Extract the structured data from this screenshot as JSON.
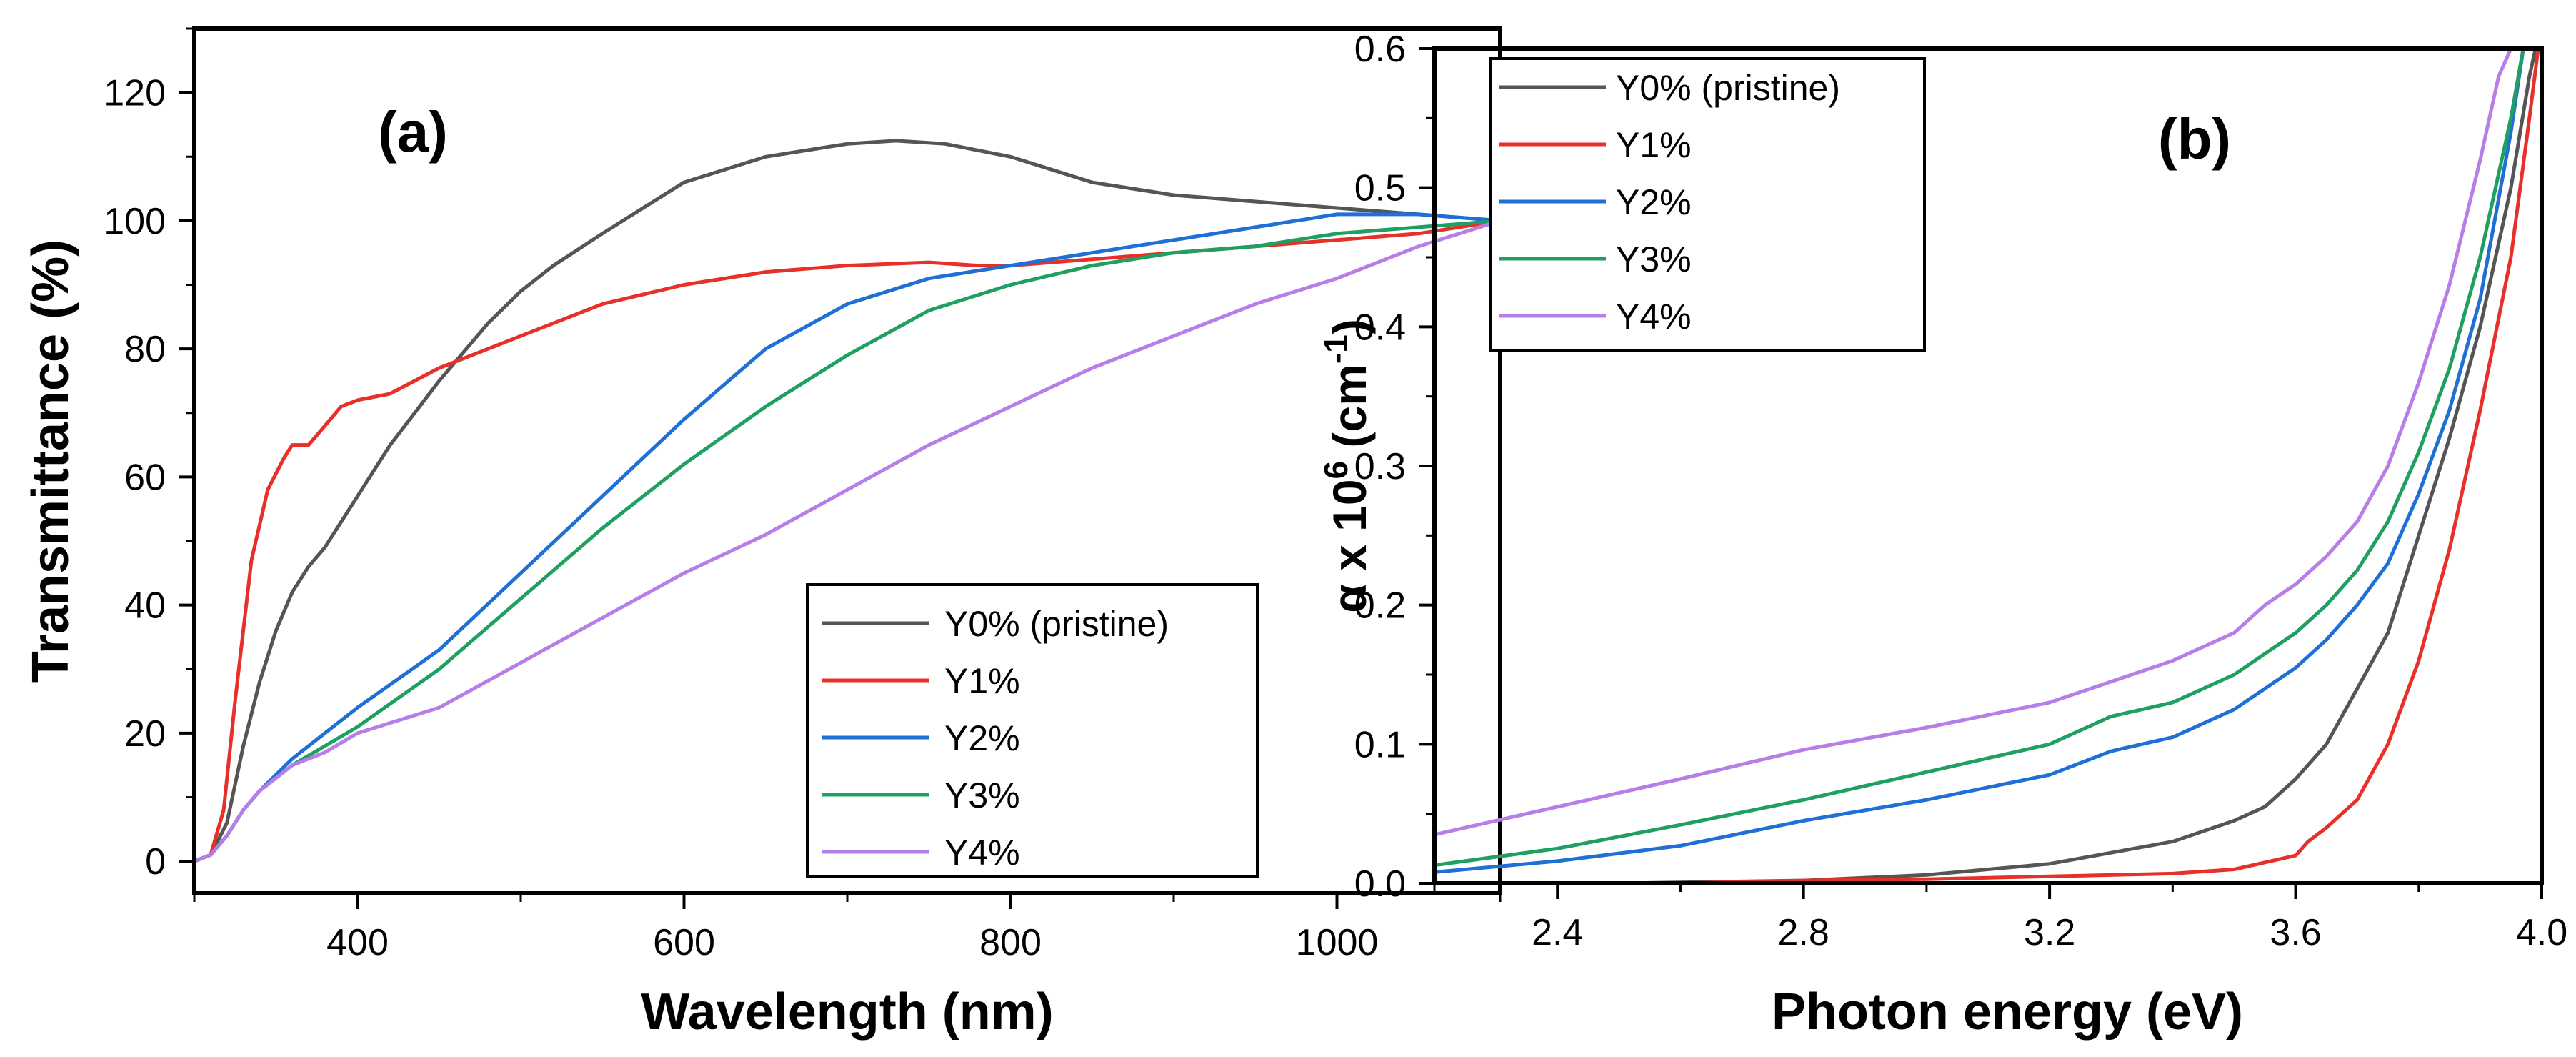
{
  "chart_data": [
    {
      "panel": "(a)",
      "type": "line",
      "xlabel": "Wavelength (nm)",
      "ylabel": "Transmittance (%)",
      "xlim": [
        300,
        1100
      ],
      "ylim": [
        -5,
        130
      ],
      "xticks": [
        400,
        600,
        800,
        1000
      ],
      "yticks": [
        0,
        20,
        40,
        60,
        80,
        100,
        120
      ],
      "legend_position": "bottom-right",
      "series": [
        {
          "name": "Y0% (pristine)",
          "color": "#555555",
          "x": [
            300,
            310,
            320,
            330,
            340,
            350,
            360,
            370,
            380,
            400,
            420,
            450,
            480,
            500,
            520,
            550,
            600,
            650,
            700,
            730,
            760,
            780,
            800,
            850,
            900,
            950,
            1000,
            1050,
            1100
          ],
          "y": [
            0,
            1,
            6,
            18,
            28,
            36,
            42,
            46,
            49,
            57,
            65,
            75,
            84,
            89,
            93,
            98,
            106,
            110,
            112,
            112.5,
            112,
            111,
            110,
            106,
            104,
            103,
            102,
            101,
            100
          ]
        },
        {
          "name": "Y1%",
          "color": "#e8302a",
          "x": [
            300,
            310,
            318,
            325,
            335,
            345,
            355,
            360,
            370,
            380,
            390,
            400,
            420,
            450,
            500,
            550,
            600,
            650,
            700,
            750,
            780,
            800,
            850,
            900,
            950,
            1000,
            1050,
            1100
          ],
          "y": [
            0,
            1,
            8,
            25,
            47,
            58,
            63,
            65,
            65,
            68,
            71,
            72,
            73,
            77,
            82,
            87,
            90,
            92,
            93,
            93.5,
            93,
            93,
            94,
            95,
            96,
            97,
            98,
            100
          ]
        },
        {
          "name": "Y2%",
          "color": "#1e6fd6",
          "x": [
            300,
            310,
            320,
            330,
            340,
            360,
            380,
            400,
            450,
            500,
            550,
            600,
            650,
            700,
            750,
            800,
            850,
            900,
            950,
            1000,
            1050,
            1100
          ],
          "y": [
            0,
            1,
            4,
            8,
            11,
            16,
            20,
            24,
            33,
            45,
            57,
            69,
            80,
            87,
            91,
            93,
            95,
            97,
            99,
            101,
            101,
            100
          ]
        },
        {
          "name": "Y3%",
          "color": "#1fa060",
          "x": [
            300,
            310,
            320,
            330,
            340,
            360,
            380,
            400,
            450,
            500,
            550,
            600,
            650,
            700,
            750,
            800,
            850,
            900,
            950,
            1000,
            1050,
            1100
          ],
          "y": [
            0,
            1,
            4,
            8,
            11,
            15,
            18,
            21,
            30,
            41,
            52,
            62,
            71,
            79,
            86,
            90,
            93,
            95,
            96,
            98,
            99,
            100
          ]
        },
        {
          "name": "Y4%",
          "color": "#b77ee8",
          "x": [
            300,
            310,
            320,
            330,
            340,
            360,
            380,
            400,
            450,
            500,
            550,
            600,
            650,
            700,
            750,
            800,
            850,
            900,
            950,
            1000,
            1050,
            1100
          ],
          "y": [
            0,
            1,
            4,
            8,
            11,
            15,
            17,
            20,
            24,
            31,
            38,
            45,
            51,
            58,
            65,
            71,
            77,
            82,
            87,
            91,
            96,
            100
          ]
        }
      ]
    },
    {
      "panel": "(b)",
      "type": "line",
      "xlabel": "Photon energy (eV)",
      "ylabel_prefix": "α x 10",
      "ylabel_exp": "6",
      "ylabel_unit": " (cm",
      "ylabel_unit_exp": "-1",
      "ylabel_close": ")",
      "xlim": [
        2.2,
        4.0
      ],
      "ylim": [
        0.0,
        0.6
      ],
      "xticks": [
        "2.4",
        "2.8",
        "3.2",
        "3.6",
        "4.0"
      ],
      "yticks": [
        "0.0",
        "0.1",
        "0.2",
        "0.3",
        "0.4",
        "0.5",
        "0.6"
      ],
      "legend_position": "top-left",
      "series": [
        {
          "name": "Y0% (pristine)",
          "color": "#555555",
          "x": [
            2.2,
            2.5,
            2.8,
            3.0,
            3.2,
            3.3,
            3.4,
            3.5,
            3.55,
            3.6,
            3.65,
            3.7,
            3.75,
            3.8,
            3.85,
            3.9,
            3.95,
            3.98,
            4.0
          ],
          "y": [
            0,
            0,
            0.002,
            0.006,
            0.014,
            0.022,
            0.03,
            0.045,
            0.055,
            0.075,
            0.1,
            0.14,
            0.18,
            0.25,
            0.32,
            0.4,
            0.5,
            0.58,
            0.62
          ]
        },
        {
          "name": "Y1%",
          "color": "#e8302a",
          "x": [
            2.2,
            2.6,
            2.8,
            3.0,
            3.2,
            3.4,
            3.5,
            3.55,
            3.6,
            3.62,
            3.65,
            3.7,
            3.75,
            3.8,
            3.85,
            3.9,
            3.95,
            3.98,
            4.0
          ],
          "y": [
            0,
            0,
            0.002,
            0.003,
            0.005,
            0.007,
            0.01,
            0.015,
            0.02,
            0.03,
            0.04,
            0.06,
            0.1,
            0.16,
            0.24,
            0.34,
            0.45,
            0.55,
            0.62
          ]
        },
        {
          "name": "Y2%",
          "color": "#1e6fd6",
          "x": [
            2.2,
            2.4,
            2.6,
            2.8,
            3.0,
            3.2,
            3.3,
            3.4,
            3.5,
            3.55,
            3.6,
            3.65,
            3.7,
            3.75,
            3.8,
            3.85,
            3.9,
            3.95,
            3.97
          ],
          "y": [
            0.008,
            0.016,
            0.027,
            0.045,
            0.06,
            0.078,
            0.095,
            0.105,
            0.125,
            0.14,
            0.155,
            0.175,
            0.2,
            0.23,
            0.28,
            0.34,
            0.42,
            0.54,
            0.6
          ]
        },
        {
          "name": "Y3%",
          "color": "#1fa060",
          "x": [
            2.2,
            2.4,
            2.6,
            2.8,
            3.0,
            3.2,
            3.3,
            3.4,
            3.5,
            3.55,
            3.6,
            3.65,
            3.7,
            3.75,
            3.8,
            3.85,
            3.9,
            3.95,
            3.97
          ],
          "y": [
            0.013,
            0.025,
            0.042,
            0.06,
            0.08,
            0.1,
            0.12,
            0.13,
            0.15,
            0.165,
            0.18,
            0.2,
            0.225,
            0.26,
            0.31,
            0.37,
            0.45,
            0.55,
            0.6
          ]
        },
        {
          "name": "Y4%",
          "color": "#b77ee8",
          "x": [
            2.2,
            2.4,
            2.6,
            2.8,
            3.0,
            3.2,
            3.3,
            3.4,
            3.5,
            3.55,
            3.6,
            3.65,
            3.7,
            3.75,
            3.8,
            3.85,
            3.9,
            3.93,
            3.95
          ],
          "y": [
            0.035,
            0.055,
            0.075,
            0.096,
            0.112,
            0.13,
            0.145,
            0.16,
            0.18,
            0.2,
            0.215,
            0.235,
            0.26,
            0.3,
            0.36,
            0.43,
            0.52,
            0.58,
            0.6
          ]
        }
      ]
    }
  ]
}
